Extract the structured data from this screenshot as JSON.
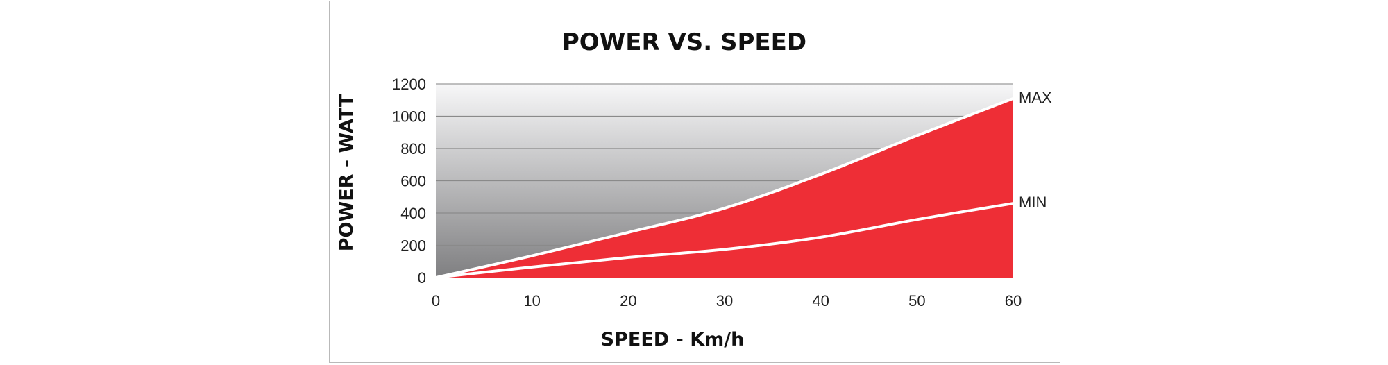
{
  "chart_data": {
    "type": "area",
    "title": "POWER VS. SPEED",
    "xlabel": "SPEED - Km/h",
    "ylabel": "POWER - WATT",
    "xlim": [
      0,
      60
    ],
    "ylim": [
      0,
      1200
    ],
    "x_ticks": [
      0,
      10,
      20,
      30,
      40,
      50,
      60
    ],
    "y_ticks": [
      0,
      200,
      400,
      600,
      800,
      1000,
      1200
    ],
    "grid": true,
    "x": [
      0,
      10,
      20,
      30,
      40,
      50,
      60
    ],
    "series": [
      {
        "name": "MAX",
        "values": [
          0,
          135,
          280,
          430,
          640,
          880,
          1110
        ]
      },
      {
        "name": "MIN",
        "values": [
          0,
          65,
          125,
          175,
          250,
          360,
          460
        ]
      }
    ],
    "colors": {
      "fill_between": "#ee2e36",
      "line": "#ffffff",
      "background_top": "#f7f7f8",
      "background_bottom": "#7f7f81",
      "grid": "#8a8a8a"
    }
  }
}
